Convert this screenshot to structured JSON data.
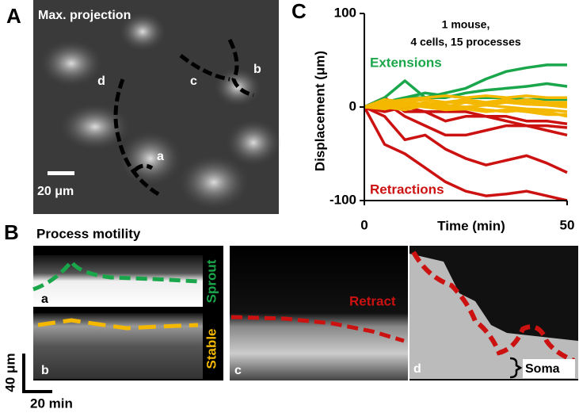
{
  "figure": {
    "panel_a": {
      "letter": "A",
      "title": "Max. projection",
      "labels": [
        "a",
        "b",
        "c",
        "d"
      ],
      "scale_bar": "20 μm"
    },
    "panel_b": {
      "letter": "B",
      "title": "Process motility",
      "labels": [
        "a",
        "b",
        "c",
        "d"
      ],
      "sprout": "Sprout",
      "stable": "Stable",
      "retract": "Retract",
      "soma": "Soma",
      "scale_y": "40 μm",
      "scale_x": "20 min"
    },
    "panel_c": {
      "letter": "C"
    }
  },
  "chart_data": {
    "type": "line",
    "xlabel": "Time (min)",
    "ylabel": "Displacement (μm)",
    "annotations": [
      {
        "text": "1 mouse,",
        "color": "#000000"
      },
      {
        "text": "4 cells, 15 processes",
        "color": "#000000"
      },
      {
        "text": "Extensions",
        "color": "#1aa64a"
      },
      {
        "text": "Retractions",
        "color": "#cc1111"
      }
    ],
    "x": [
      0,
      5,
      10,
      15,
      20,
      25,
      30,
      35,
      40,
      45,
      50
    ],
    "xlim": [
      0,
      50
    ],
    "xticks": [
      0,
      50
    ],
    "ylim": [
      -100,
      100
    ],
    "yticks": [
      -100,
      0,
      100
    ],
    "series": [
      {
        "color": "#cc1111",
        "values": [
          0,
          -40,
          -50,
          -65,
          -80,
          -90,
          -95,
          -93,
          -90,
          -95,
          -100
        ]
      },
      {
        "color": "#cc1111",
        "values": [
          0,
          -10,
          -35,
          -30,
          -45,
          -55,
          -62,
          -57,
          -52,
          -60,
          -70
        ]
      },
      {
        "color": "#cc1111",
        "values": [
          0,
          5,
          -10,
          -20,
          -30,
          -30,
          -25,
          -20,
          -20,
          -25,
          -30
        ]
      },
      {
        "color": "#cc1111",
        "values": [
          0,
          10,
          -5,
          -5,
          -15,
          -10,
          -10,
          -15,
          -20,
          -20,
          -22
        ]
      },
      {
        "color": "#cc1111",
        "values": [
          0,
          -5,
          0,
          -5,
          -5,
          -5,
          -10,
          -10,
          -15,
          -15,
          -18
        ]
      },
      {
        "color": "#1aa64a",
        "values": [
          0,
          5,
          10,
          10,
          15,
          20,
          30,
          38,
          42,
          45,
          45
        ]
      },
      {
        "color": "#1aa64a",
        "values": [
          0,
          10,
          28,
          10,
          10,
          15,
          18,
          20,
          22,
          25,
          22
        ]
      },
      {
        "color": "#1aa64a",
        "values": [
          0,
          5,
          10,
          15,
          12,
          10,
          10,
          10,
          8,
          8,
          8
        ]
      },
      {
        "color": "#f5b800",
        "values": [
          0,
          5,
          8,
          10,
          12,
          10,
          12,
          10,
          12,
          10,
          10
        ]
      },
      {
        "color": "#f5b800",
        "values": [
          0,
          8,
          5,
          8,
          5,
          8,
          5,
          8,
          5,
          5,
          5
        ]
      },
      {
        "color": "#f5b800",
        "values": [
          0,
          2,
          5,
          3,
          5,
          5,
          3,
          5,
          3,
          2,
          0
        ]
      },
      {
        "color": "#f5b800",
        "values": [
          0,
          3,
          0,
          5,
          2,
          0,
          2,
          0,
          -2,
          -3,
          -5
        ]
      },
      {
        "color": "#f5b800",
        "values": [
          0,
          -2,
          2,
          0,
          -3,
          -2,
          -5,
          -3,
          -5,
          -8,
          -8
        ]
      },
      {
        "color": "#f5b800",
        "values": [
          0,
          5,
          3,
          0,
          -2,
          0,
          -3,
          -5,
          -3,
          -5,
          -10
        ]
      },
      {
        "color": "#f5b800",
        "values": [
          0,
          0,
          -3,
          2,
          0,
          5,
          2,
          5,
          8,
          5,
          2
        ]
      }
    ]
  }
}
